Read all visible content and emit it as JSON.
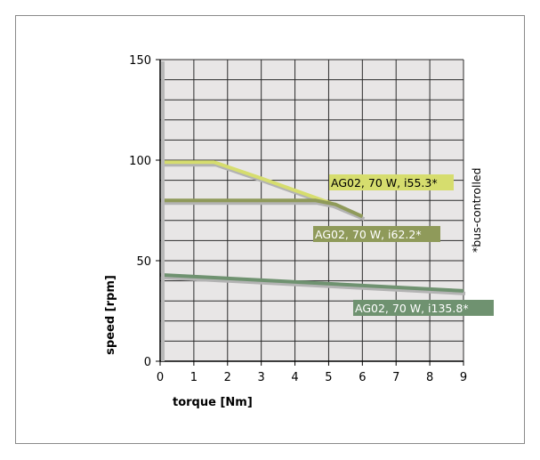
{
  "chart_data": {
    "type": "line",
    "xlabel": "torque [Nm]",
    "ylabel": "speed [rpm]",
    "xlim": [
      0,
      9
    ],
    "ylim": [
      0,
      150
    ],
    "x_ticks": [
      "0",
      "1",
      "2",
      "3",
      "4",
      "5",
      "6",
      "7",
      "8",
      "9"
    ],
    "y_ticks": [
      "0",
      "50",
      "100",
      "150"
    ],
    "y_tick_values": [
      0,
      50,
      100,
      150
    ],
    "grid": true,
    "note": "*bus-controlled",
    "series": [
      {
        "name": "AG02, 70 W, i55.3*",
        "color": "#d6dd6e",
        "label_bg": "#d6dd6e",
        "label_fg": "#000000",
        "points": [
          [
            0,
            99
          ],
          [
            1.6,
            99
          ],
          [
            3,
            91
          ],
          [
            5,
            79
          ],
          [
            6,
            72
          ]
        ]
      },
      {
        "name": "AG02, 70 W, i62.2*",
        "color": "#8f9a5a",
        "label_bg": "#8f9a5a",
        "label_fg": "#ffffff",
        "points": [
          [
            0,
            80
          ],
          [
            4.6,
            80
          ],
          [
            5.2,
            78
          ],
          [
            6,
            72
          ]
        ]
      },
      {
        "name": "AG02, 70 W, i135.8*",
        "color": "#6f9270",
        "label_bg": "#6f9270",
        "label_fg": "#ffffff",
        "points": [
          [
            0,
            43
          ],
          [
            9,
            35
          ]
        ]
      }
    ]
  }
}
